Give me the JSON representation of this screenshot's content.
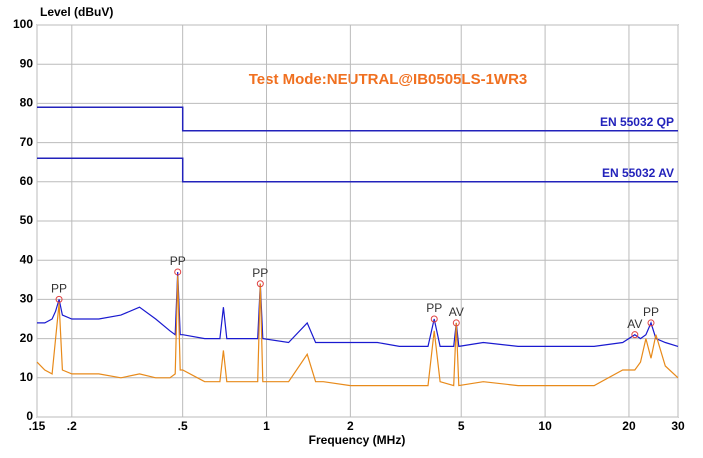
{
  "chart_data": {
    "type": "line",
    "title": "Test Mode:NEUTRAL@IB0505LS-1WR3",
    "y_label": "Level (dBuV)",
    "x_label": "Frequency (MHz)",
    "xscale": "log",
    "grid": true,
    "xlim": [
      0.15,
      30
    ],
    "ylim": [
      0,
      100
    ],
    "xticks": [
      {
        "value": 0.15,
        "label": ".15"
      },
      {
        "value": 0.2,
        "label": ".2"
      },
      {
        "value": 0.5,
        "label": ".5"
      },
      1,
      2,
      5,
      10,
      20,
      30
    ],
    "yticks": [
      0,
      10,
      20,
      30,
      40,
      50,
      60,
      70,
      80,
      90,
      100
    ],
    "series": [
      {
        "name": "EN 55032 QP",
        "color": "#2222bb",
        "x": [
          0.15,
          0.5,
          0.5,
          30
        ],
        "values": [
          79,
          79,
          73,
          73
        ]
      },
      {
        "name": "EN 55032 AV",
        "color": "#2222bb",
        "x": [
          0.15,
          0.5,
          0.5,
          30
        ],
        "values": [
          66,
          66,
          60,
          60
        ]
      },
      {
        "color": "#1a1ad0",
        "x": [
          0.15,
          0.16,
          0.17,
          0.175,
          0.18,
          0.185,
          0.2,
          0.25,
          0.3,
          0.35,
          0.4,
          0.45,
          0.47,
          0.48,
          0.49,
          0.5,
          0.6,
          0.68,
          0.7,
          0.72,
          0.9,
          0.93,
          0.95,
          0.97,
          1.2,
          1.4,
          1.5,
          1.6,
          2,
          2.5,
          3,
          3.8,
          4,
          4.2,
          4.7,
          4.8,
          4.9,
          6,
          8,
          10,
          15,
          19,
          21,
          22,
          23,
          24,
          25,
          27,
          30
        ],
        "values": [
          24,
          24,
          25,
          27,
          30,
          26,
          25,
          25,
          26,
          28,
          25,
          22,
          21,
          37,
          21,
          21,
          20,
          20,
          28,
          20,
          20,
          20,
          34,
          20,
          19,
          24,
          19,
          19,
          19,
          19,
          18,
          18,
          25,
          18,
          18,
          24,
          18,
          19,
          18,
          18,
          18,
          19,
          21,
          20,
          21,
          24,
          20,
          19,
          18
        ]
      },
      {
        "color": "#e88a1a",
        "x": [
          0.15,
          0.16,
          0.17,
          0.175,
          0.18,
          0.185,
          0.2,
          0.25,
          0.3,
          0.35,
          0.4,
          0.45,
          0.47,
          0.48,
          0.49,
          0.5,
          0.6,
          0.68,
          0.7,
          0.72,
          0.9,
          0.93,
          0.95,
          0.97,
          1.2,
          1.4,
          1.5,
          1.6,
          2,
          2.5,
          3,
          3.8,
          4,
          4.2,
          4.7,
          4.8,
          4.9,
          6,
          8,
          10,
          15,
          19,
          21,
          22,
          23,
          24,
          25,
          27,
          30
        ],
        "values": [
          14,
          12,
          11,
          20,
          29,
          12,
          11,
          11,
          10,
          11,
          10,
          10,
          11,
          36,
          12,
          12,
          9,
          9,
          17,
          9,
          9,
          9,
          34,
          9,
          9,
          16,
          9,
          9,
          8,
          8,
          8,
          8,
          22,
          9,
          8,
          24,
          8,
          9,
          8,
          8,
          8,
          12,
          12,
          14,
          20,
          15,
          21,
          13,
          10
        ]
      }
    ],
    "markers": [
      {
        "label": "PP",
        "x": 0.18,
        "y": 30
      },
      {
        "label": "PP",
        "x": 0.48,
        "y": 37
      },
      {
        "label": "PP",
        "x": 0.95,
        "y": 34
      },
      {
        "label": "PP",
        "x": 4,
        "y": 25
      },
      {
        "label": "AV",
        "x": 4.8,
        "y": 24
      },
      {
        "label": "AV",
        "x": 21,
        "y": 21
      },
      {
        "label": "PP",
        "x": 24,
        "y": 24
      }
    ]
  }
}
